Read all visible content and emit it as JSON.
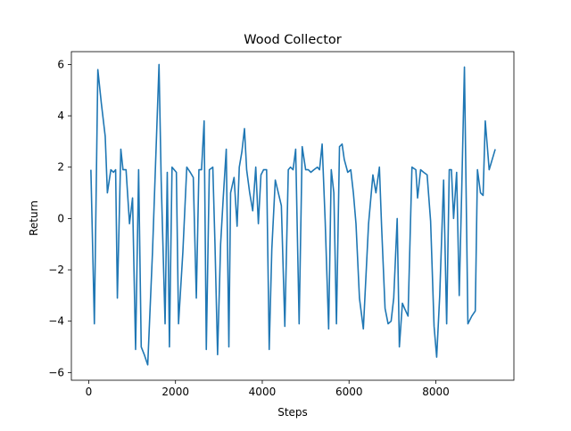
{
  "chart_data": {
    "type": "line",
    "title": "Wood Collector",
    "xlabel": "Steps",
    "ylabel": "Return",
    "xlim": [
      -400,
      9800
    ],
    "ylim": [
      -6.3,
      6.5
    ],
    "xticks": [
      0,
      2000,
      4000,
      6000,
      8000
    ],
    "xtick_labels": [
      "0",
      "2000",
      "4000",
      "6000",
      "8000"
    ],
    "yticks": [
      -6,
      -4,
      -2,
      0,
      2,
      4,
      6
    ],
    "ytick_labels": [
      "−6",
      "−4",
      "−2",
      "0",
      "2",
      "4",
      "6"
    ],
    "grid": false,
    "series_color": "#1f77b4",
    "series": [
      {
        "x": [
          50,
          130,
          210,
          290,
          380,
          430,
          510,
          570,
          620,
          660,
          740,
          790,
          860,
          940,
          1010,
          1080,
          1150,
          1210,
          1280,
          1360,
          1470,
          1620,
          1670,
          1760,
          1810,
          1860,
          1920,
          2020,
          2070,
          2170,
          2260,
          2340,
          2410,
          2480,
          2540,
          2600,
          2660,
          2710,
          2780,
          2860,
          2910,
          2970,
          3040,
          3100,
          3170,
          3230,
          3270,
          3350,
          3420,
          3470,
          3530,
          3590,
          3640,
          3710,
          3780,
          3850,
          3910,
          3970,
          4030,
          4100,
          4160,
          4220,
          4300,
          4370,
          4440,
          4520,
          4600,
          4650,
          4710,
          4770,
          4850,
          4920,
          5000,
          5060,
          5120,
          5190,
          5270,
          5320,
          5380,
          5450,
          5530,
          5590,
          5650,
          5710,
          5780,
          5840,
          5890,
          5970,
          6040,
          6100,
          6160,
          6240,
          6330,
          6450,
          6550,
          6620,
          6700,
          6750,
          6830,
          6900,
          6970,
          7030,
          7110,
          7160,
          7230,
          7280,
          7360,
          7450,
          7540,
          7580,
          7650,
          7720,
          7800,
          7880,
          7960,
          8020,
          8090,
          8180,
          8250,
          8310,
          8360,
          8410,
          8480,
          8540,
          8600,
          8660,
          8740,
          8830,
          8910,
          8960,
          9030,
          9090,
          9140,
          9230,
          9370
        ],
        "y": [
          1.9,
          -4.1,
          5.8,
          4.5,
          3.2,
          1.0,
          1.9,
          1.8,
          1.9,
          -3.1,
          2.7,
          1.9,
          1.9,
          -0.2,
          0.8,
          -5.1,
          1.9,
          -5.0,
          -5.3,
          -5.7,
          -1.3,
          6.0,
          1.5,
          -4.1,
          1.8,
          -5.0,
          2.0,
          1.8,
          -4.1,
          -1.3,
          2.0,
          1.8,
          1.6,
          -3.1,
          1.9,
          1.9,
          3.8,
          -5.1,
          1.9,
          2.0,
          -1.0,
          -5.3,
          -1.0,
          0.8,
          2.7,
          -5.0,
          1.0,
          1.6,
          -0.3,
          2.0,
          2.6,
          3.5,
          1.9,
          1.0,
          0.3,
          2.0,
          -0.2,
          1.7,
          1.9,
          1.9,
          -5.1,
          -1.2,
          1.5,
          1.0,
          0.5,
          -4.2,
          1.9,
          2.0,
          1.9,
          2.7,
          -4.1,
          2.8,
          1.9,
          1.9,
          1.8,
          1.9,
          2.0,
          1.9,
          2.9,
          -0.1,
          -4.3,
          1.9,
          1.0,
          -4.1,
          2.8,
          2.9,
          2.3,
          1.8,
          1.9,
          1.0,
          -0.2,
          -3.1,
          -4.3,
          -0.2,
          1.7,
          1.0,
          2.0,
          -0.3,
          -3.5,
          -4.1,
          -4.0,
          -3.1,
          0.0,
          -5.0,
          -3.3,
          -3.5,
          -3.8,
          2.0,
          1.9,
          0.8,
          1.9,
          1.8,
          1.7,
          -0.1,
          -4.2,
          -5.4,
          -3.0,
          1.5,
          -4.1,
          1.9,
          1.9,
          0.0,
          1.8,
          -3.0,
          1.3,
          5.9,
          -4.1,
          -3.8,
          -3.6,
          1.9,
          1.0,
          0.9,
          3.8,
          1.9,
          2.7
        ]
      }
    ]
  }
}
